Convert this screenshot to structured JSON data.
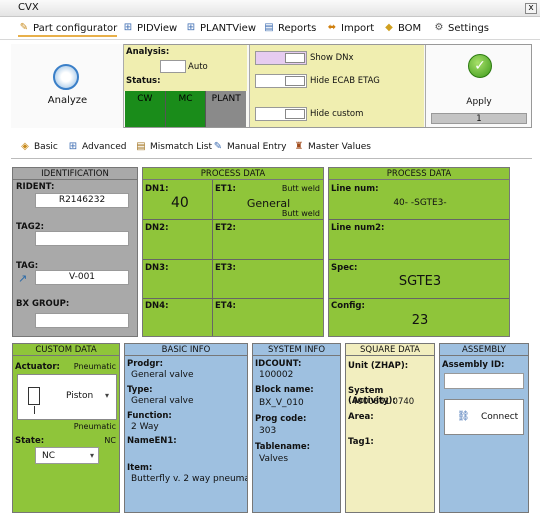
{
  "window": {
    "title": "CVX",
    "close": "x"
  },
  "menu": {
    "part_configurator": "Part configurator",
    "pidview": "PIDView",
    "plantview": "PLANTView",
    "reports": "Reports",
    "import": "Import",
    "bom": "BOM",
    "settings": "Settings"
  },
  "toolbar": {
    "analyze_label": "Analyze",
    "analysis_label": "Analysis:",
    "analysis_mode": "Auto",
    "status_label": "Status:",
    "status_cells": [
      "CW",
      "MC",
      "PLANT"
    ],
    "show_dnx": "Show DNx",
    "hide_ecab": "Hide ECAB ETAG",
    "hide_custom": "Hide custom",
    "apply_label": "Apply",
    "apply_count": "1"
  },
  "tabs": [
    "Basic",
    "Advanced",
    "Mismatch List",
    "Manual Entry",
    "Master Values"
  ],
  "identification": {
    "header": "IDENTIFICATION",
    "rident_label": "RIDENT:",
    "rident_value": "R2146232",
    "tag2_label": "TAG2:",
    "tag2_value": "",
    "tag_label": "TAG:",
    "tag_value": "V-001",
    "bx_group_label": "BX GROUP:",
    "bx_group_value": ""
  },
  "process1": {
    "header": "PROCESS DATA",
    "dn1_label": "DN1:",
    "dn1_value": "40",
    "et1_label": "ET1:",
    "et1_top": "Butt weld",
    "et1_value": "General",
    "et1_bottom": "Butt weld",
    "dn2_label": "DN2:",
    "et2_label": "ET2:",
    "dn3_label": "DN3:",
    "et3_label": "ET3:",
    "dn4_label": "DN4:",
    "et4_label": "ET4:"
  },
  "process2": {
    "header": "PROCESS DATA",
    "line_num_label": "Line num:",
    "line_num_value": "40- -SGTE3-",
    "line_num2_label": "Line num2:",
    "spec_label": "Spec:",
    "spec_value": "SGTE3",
    "config_label": "Config:",
    "config_value": "23"
  },
  "custom": {
    "header": "CUSTOM DATA",
    "actuator_label": "Actuator:",
    "actuator_top": "Pneumatic",
    "actuator_value": "Piston",
    "actuator_bottom": "Pneumatic",
    "state_label": "State:",
    "state_hint": "NC",
    "state_value": "NC"
  },
  "basic_info": {
    "header": "BASIC INFO",
    "prodgr_label": "Prodgr:",
    "prodgr_value": "General valve",
    "type_label": "Type:",
    "type_value": "General valve",
    "function_label": "Function:",
    "function_value": "2 Way",
    "nameen1_label": "NameEN1:",
    "item_label": "Item:",
    "item_value": "Butterfly v. 2 way pneumat"
  },
  "system_info": {
    "header": "SYSTEM INFO",
    "idcount_label": "IDCOUNT:",
    "idcount_value": "100002",
    "block_label": "Block name:",
    "block_value": "BX_V_010",
    "prog_label": "Prog code:",
    "prog_value": "303",
    "table_label": "Tablename:",
    "table_value": "Valves"
  },
  "square_data": {
    "header": "SQUARE DATA",
    "unit_label": "Unit (ZHAP):",
    "system_label": "System (Activity):",
    "system_value": "4000861 0740",
    "area_label": "Area:",
    "tag1_label": "Tag1:"
  },
  "assembly": {
    "header": "ASSEMBLY",
    "assembly_id_label": "Assembly ID:",
    "connect_label": "Connect"
  },
  "colors": {
    "green": "#8fc53a",
    "status_green": "#1a8c1a",
    "gray": "#a9a9a9",
    "blue": "#9ec0e0",
    "cream": "#f2eebf"
  }
}
